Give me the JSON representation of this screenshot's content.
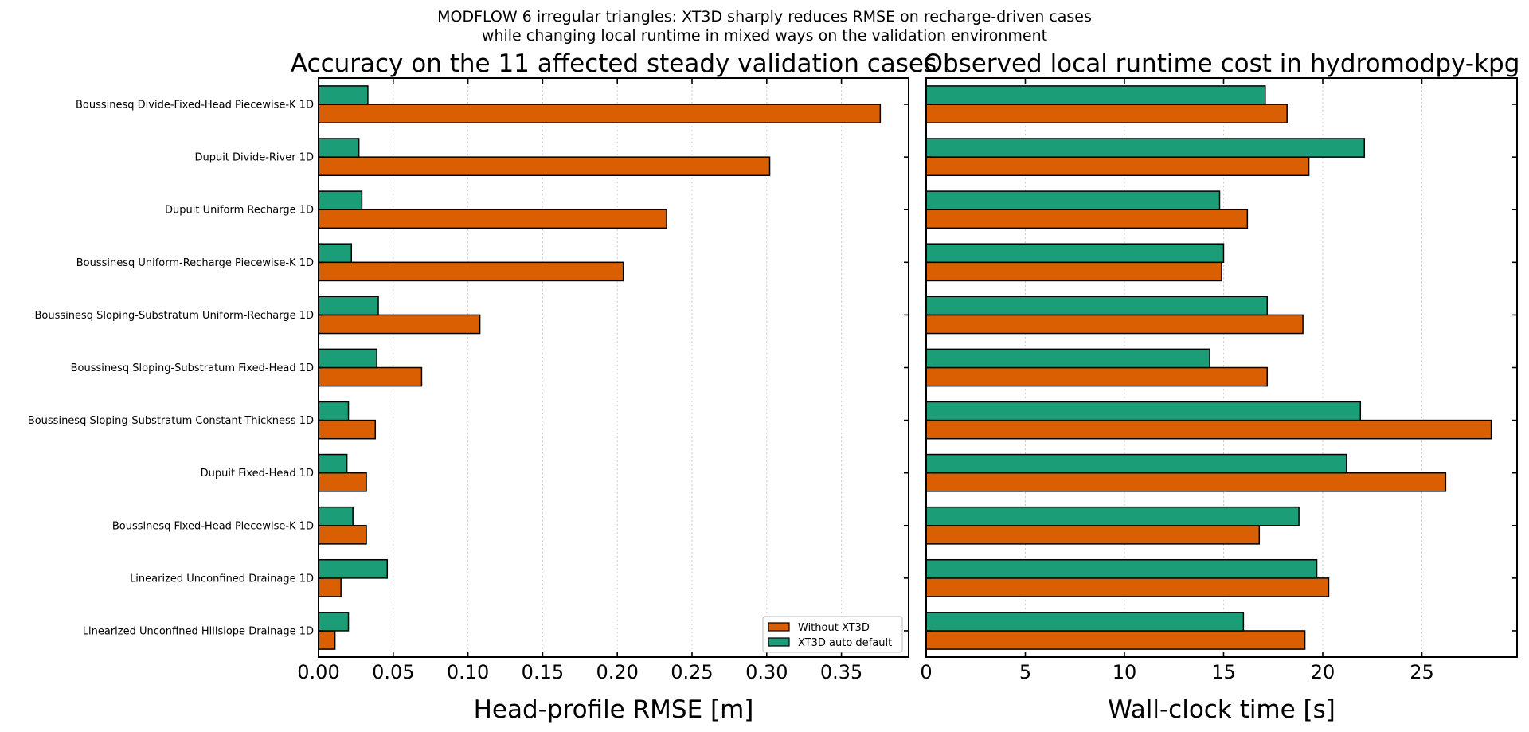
{
  "figure": {
    "suptitle_line1": "MODFLOW 6 irregular triangles: XT3D sharply reduces RMSE on recharge-driven cases",
    "suptitle_line2": "while changing local runtime in mixed ways on the validation environment"
  },
  "colors": {
    "without_xt3d": "#d95f02",
    "xt3d_auto_default": "#1b9e77"
  },
  "chart_data": [
    {
      "type": "bar",
      "orientation": "horizontal",
      "title": "Accuracy on the 11 affected steady validation cases",
      "xlabel": "Head-profile RMSE [m]",
      "ylabel": "",
      "xlim": [
        0,
        0.395
      ],
      "xticks": [
        0.0,
        0.05,
        0.1,
        0.15,
        0.2,
        0.25,
        0.3,
        0.35
      ],
      "xtick_labels": [
        "0.00",
        "0.05",
        "0.10",
        "0.15",
        "0.20",
        "0.25",
        "0.30",
        "0.35"
      ],
      "grid": "x-dotted",
      "legend": "lower-right",
      "categories": [
        "Boussinesq Divide-Fixed-Head Piecewise-K 1D",
        "Dupuit Divide-River 1D",
        "Dupuit Uniform Recharge 1D",
        "Boussinesq Uniform-Recharge Piecewise-K 1D",
        "Boussinesq Sloping-Substratum Uniform-Recharge 1D",
        "Boussinesq Sloping-Substratum Fixed-Head 1D",
        "Boussinesq Sloping-Substratum Constant-Thickness 1D",
        "Dupuit Fixed-Head 1D",
        "Boussinesq Fixed-Head Piecewise-K 1D",
        "Linearized Unconfined Drainage 1D",
        "Linearized Unconfined Hillslope Drainage 1D"
      ],
      "series": [
        {
          "name": "Without XT3D",
          "values": [
            0.376,
            0.302,
            0.233,
            0.204,
            0.108,
            0.069,
            0.038,
            0.032,
            0.032,
            0.015,
            0.011
          ]
        },
        {
          "name": "XT3D auto default",
          "values": [
            0.033,
            0.027,
            0.029,
            0.022,
            0.04,
            0.039,
            0.02,
            0.019,
            0.023,
            0.046,
            0.02
          ]
        }
      ]
    },
    {
      "type": "bar",
      "orientation": "horizontal",
      "title": "Observed local runtime cost in hydromodpy-kpg",
      "xlabel": "Wall-clock time [s]",
      "ylabel": "",
      "xlim": [
        0,
        29.8
      ],
      "xticks": [
        0,
        5,
        10,
        15,
        20,
        25
      ],
      "xtick_labels": [
        "0",
        "5",
        "10",
        "15",
        "20",
        "25"
      ],
      "grid": "x-dotted",
      "categories": [
        "Boussinesq Divide-Fixed-Head Piecewise-K 1D",
        "Dupuit Divide-River 1D",
        "Dupuit Uniform Recharge 1D",
        "Boussinesq Uniform-Recharge Piecewise-K 1D",
        "Boussinesq Sloping-Substratum Uniform-Recharge 1D",
        "Boussinesq Sloping-Substratum Fixed-Head 1D",
        "Boussinesq Sloping-Substratum Constant-Thickness 1D",
        "Dupuit Fixed-Head 1D",
        "Boussinesq Fixed-Head Piecewise-K 1D",
        "Linearized Unconfined Drainage 1D",
        "Linearized Unconfined Hillslope Drainage 1D"
      ],
      "series": [
        {
          "name": "Without XT3D",
          "values": [
            18.2,
            19.3,
            16.2,
            14.9,
            19.0,
            17.2,
            28.5,
            26.2,
            16.8,
            20.3,
            19.1
          ]
        },
        {
          "name": "XT3D auto default",
          "values": [
            17.1,
            22.1,
            14.8,
            15.0,
            17.2,
            14.3,
            21.9,
            21.2,
            18.8,
            19.7,
            16.0
          ]
        }
      ]
    }
  ]
}
